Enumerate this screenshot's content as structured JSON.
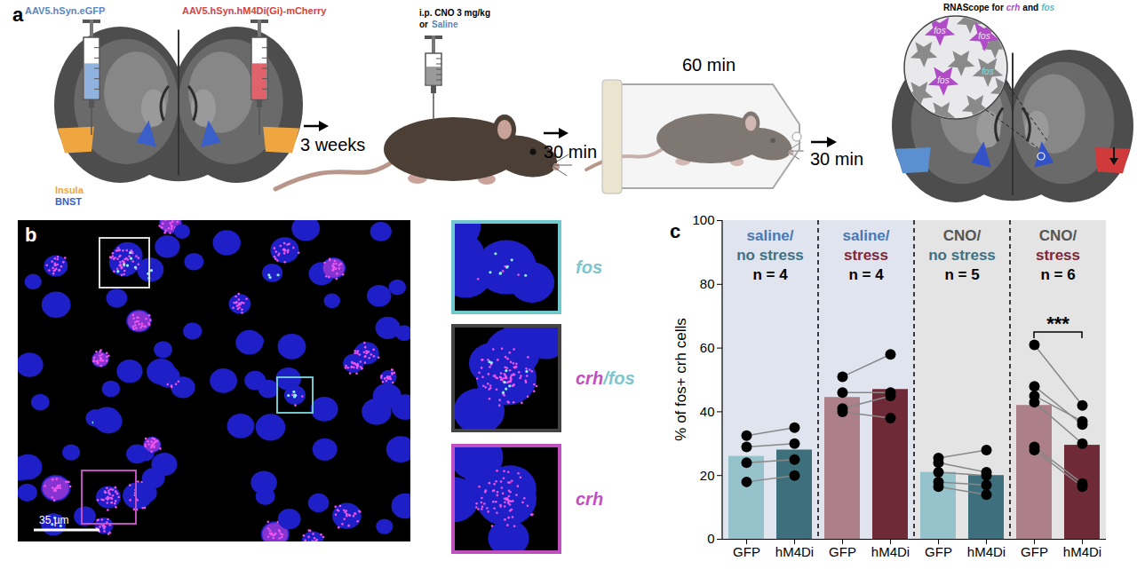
{
  "panel_a": {
    "label": "a",
    "virus_left": {
      "text": "AAV5.hSyn.eGFP",
      "color": "#5b87c0"
    },
    "virus_right": {
      "text": "AAV5.hSyn.hM4Di(Gi)-mCherry",
      "color": "#d0453f"
    },
    "regions": [
      {
        "text": "Insula",
        "color": "#f0a640"
      },
      {
        "text": "BNST",
        "color": "#3a5fc8"
      }
    ],
    "wait": "3 weeks",
    "injection": {
      "text": "i.p. CNO 3 mg/kg",
      "or": "or",
      "alternative": {
        "text": "Saline",
        "color": "#5b87c0"
      }
    },
    "delay_1": "30 min",
    "restraint": "60 min",
    "delay_2": "30 min",
    "assay": {
      "text": "RNAScope for",
      "probe_1": "crh",
      "and": "and",
      "probe_2": "fos"
    },
    "cell_labels": [
      "fos",
      "fos",
      "fos",
      "fos"
    ]
  },
  "panel_b": {
    "label": "b",
    "scale_bar": "35 µm",
    "insets": [
      {
        "text": [
          "fos"
        ],
        "colors": [
          "#7ec5cc"
        ]
      },
      {
        "text": [
          "crh",
          "/",
          "fos"
        ],
        "colors": [
          "#c24fc2",
          "#7ec5cc",
          "#7ec5cc"
        ]
      },
      {
        "text": [
          "crh"
        ],
        "colors": [
          "#c24fc2"
        ]
      }
    ]
  },
  "chart_data": {
    "type": "bar",
    "label": "c",
    "ylabel": "% of fos+ crh cells",
    "ylim": [
      0,
      100
    ],
    "yticks": [
      0,
      20,
      40,
      60,
      80,
      100
    ],
    "groups": [
      {
        "title": [
          {
            "text": "saline/",
            "color": "#4a78b0"
          },
          {
            "text": "no stress",
            "color": "#3e7184"
          }
        ],
        "n": "n = 4",
        "categories": [
          "GFP",
          "hM4Di"
        ],
        "values": [
          26,
          28
        ],
        "colors": [
          "#96c2cc",
          "#3e6f7d"
        ],
        "points": {
          "GFP": [
            32.5,
            29,
            24,
            18
          ],
          "hM4Di": [
            35,
            30,
            25,
            20
          ]
        }
      },
      {
        "title": [
          {
            "text": "saline/",
            "color": "#4a78b0"
          },
          {
            "text": "stress",
            "color": "#7a2a3a"
          }
        ],
        "n": "n = 4",
        "categories": [
          "GFP",
          "hM4Di"
        ],
        "values": [
          44.5,
          47
        ],
        "colors": [
          "#ad7f89",
          "#6e2a36"
        ],
        "points": {
          "GFP": [
            51,
            46,
            41,
            40
          ],
          "hM4Di": [
            58,
            46,
            45,
            38
          ]
        }
      },
      {
        "title": [
          {
            "text": "CNO/",
            "color": "#555555"
          },
          {
            "text": "no stress",
            "color": "#3e7184"
          }
        ],
        "n": "n = 5",
        "categories": [
          "GFP",
          "hM4Di"
        ],
        "values": [
          21,
          20
        ],
        "colors": [
          "#96c2cc",
          "#3e6f7d"
        ],
        "points": {
          "GFP": [
            25.5,
            24,
            21,
            18,
            16.5
          ],
          "hM4Di": [
            28,
            21,
            20,
            17,
            14
          ]
        }
      },
      {
        "title": [
          {
            "text": "CNO/",
            "color": "#555555"
          },
          {
            "text": "stress",
            "color": "#7a2a3a"
          }
        ],
        "n": "n = 6",
        "categories": [
          "GFP",
          "hM4Di"
        ],
        "values": [
          42,
          29.5
        ],
        "colors": [
          "#ad7f89",
          "#6e2a36"
        ],
        "points": {
          "GFP": [
            61,
            48,
            45,
            43,
            29,
            28
          ],
          "hM4Di": [
            42,
            36,
            37,
            30,
            17.5,
            16.5
          ]
        }
      }
    ],
    "significance": {
      "group": 3,
      "label": "***"
    }
  }
}
